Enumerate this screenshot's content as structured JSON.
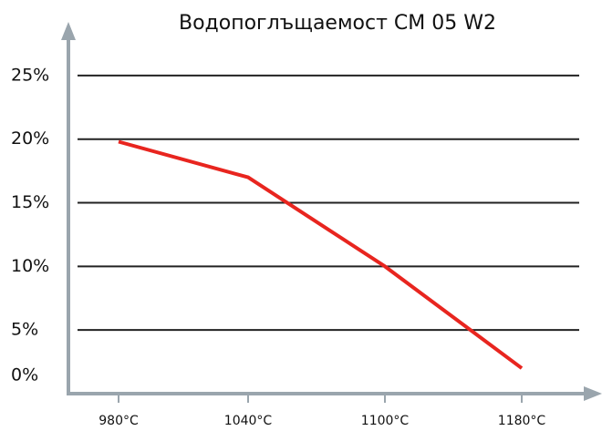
{
  "chart_data": {
    "type": "line",
    "title": "Водопоглъщаемост CM 05 W2",
    "categories": [
      "980°C",
      "1040°C",
      "1100°C",
      "1180°C"
    ],
    "series": [
      {
        "name": null,
        "color": "#e8251f",
        "values": [
          19.8,
          17,
          10,
          2
        ]
      }
    ],
    "ylim": [
      0,
      28
    ],
    "yticks": [
      {
        "value": 0,
        "label": "0%"
      },
      {
        "value": 5,
        "label": "5%"
      },
      {
        "value": 10,
        "label": "10%"
      },
      {
        "value": 15,
        "label": "15%"
      },
      {
        "value": 20,
        "label": "20%"
      },
      {
        "value": 25,
        "label": "25%"
      }
    ],
    "grid": true
  }
}
